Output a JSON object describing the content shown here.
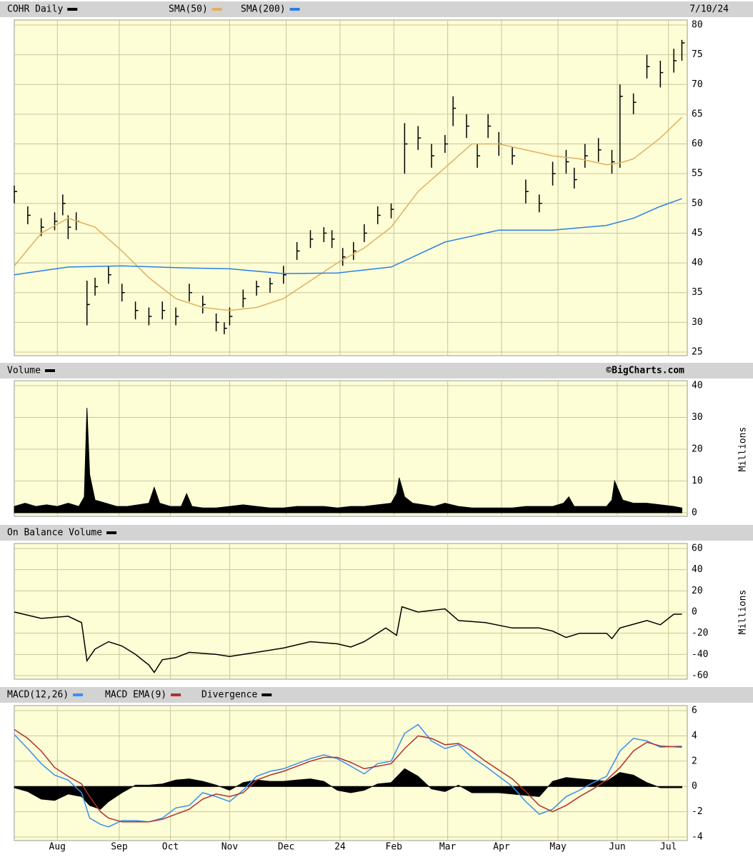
{
  "chart_data": [
    {
      "type": "ohlc",
      "date": "7/10/24",
      "xlim": [
        0,
        250
      ],
      "ylim": [
        25,
        80
      ],
      "yticks": [
        25,
        30,
        35,
        40,
        45,
        50,
        55,
        60,
        65,
        70,
        75,
        80
      ],
      "grid": true,
      "series": [
        {
          "name": "COHR Daily",
          "color": "#000000",
          "x": [
            0,
            5,
            10,
            15,
            18,
            20,
            23,
            27,
            30,
            35,
            40,
            45,
            50,
            55,
            60,
            65,
            70,
            75,
            78,
            80,
            85,
            90,
            95,
            100,
            105,
            110,
            115,
            118,
            122,
            126,
            130,
            135,
            140,
            145,
            150,
            155,
            160,
            163,
            168,
            172,
            176,
            180,
            185,
            190,
            195,
            200,
            205,
            208,
            212,
            217,
            222,
            225,
            230,
            235,
            240,
            245,
            248
          ],
          "high": [
            53,
            49.5,
            47.5,
            48.5,
            51.5,
            48,
            48.5,
            37,
            37.5,
            39.5,
            36.5,
            33.5,
            32.5,
            33.5,
            32.5,
            36.5,
            34.5,
            31.5,
            30,
            32.5,
            35.5,
            37,
            37.5,
            39.5,
            43.5,
            45.5,
            46,
            45.5,
            42.5,
            43.5,
            46.5,
            49.5,
            50,
            63.5,
            63,
            60,
            61.5,
            68,
            65,
            60,
            65,
            62,
            59.5,
            54,
            51.5,
            57,
            59,
            56,
            60,
            61,
            59,
            70,
            68.5,
            75,
            74,
            76,
            77.5
          ],
          "low": [
            50,
            46.5,
            44.5,
            45.5,
            48,
            44,
            45.5,
            29.5,
            34.5,
            36.5,
            33.5,
            30.5,
            29.5,
            30.5,
            29.5,
            33.5,
            31.5,
            28.5,
            28,
            29.5,
            32.5,
            34.5,
            35,
            36.5,
            40.5,
            42.5,
            43.5,
            42.5,
            39.5,
            40.5,
            43.5,
            46.5,
            47.5,
            55,
            59,
            56,
            58.5,
            63,
            61,
            56,
            61,
            58,
            56.5,
            50,
            48.5,
            53,
            55,
            52.5,
            56,
            57,
            55,
            56,
            65,
            71,
            69.5,
            72,
            74
          ],
          "close": [
            52,
            48,
            46,
            47,
            50,
            46,
            47,
            33,
            36,
            38,
            35,
            32,
            31,
            32,
            31,
            35,
            33,
            30,
            29,
            31,
            34,
            36,
            36.5,
            38,
            42,
            44,
            45,
            44,
            41,
            42,
            45,
            48,
            49,
            60,
            61,
            58,
            60,
            66,
            63,
            58,
            63,
            60,
            58,
            52,
            50,
            55,
            57,
            54,
            58,
            59,
            57,
            68,
            67,
            73,
            72,
            74,
            77
          ]
        },
        {
          "name": "SMA(50)",
          "color": "#e0b060",
          "x": [
            0,
            10,
            20,
            30,
            40,
            50,
            60,
            70,
            80,
            90,
            100,
            110,
            120,
            130,
            140,
            150,
            160,
            170,
            180,
            190,
            200,
            210,
            220,
            225,
            230,
            240,
            248
          ],
          "values": [
            39.5,
            45,
            47.5,
            46,
            42,
            37.5,
            34,
            32.5,
            32,
            32.5,
            34,
            37,
            40,
            42.5,
            46,
            52,
            56,
            60,
            60,
            59,
            58,
            57.5,
            56.5,
            56.8,
            57.5,
            61,
            64.5
          ]
        },
        {
          "name": "SMA(200)",
          "color": "#2a7fe8",
          "x": [
            0,
            20,
            40,
            60,
            80,
            100,
            120,
            140,
            160,
            180,
            200,
            220,
            230,
            240,
            248
          ],
          "values": [
            38,
            39.3,
            39.5,
            39.2,
            39,
            38.2,
            38.3,
            39.3,
            43.5,
            45.5,
            45.5,
            46.3,
            47.5,
            49.5,
            50.8
          ]
        }
      ]
    },
    {
      "type": "area",
      "source": "©BigCharts.com",
      "y_label": "Millions",
      "xlim": [
        0,
        250
      ],
      "ylim": [
        0,
        40
      ],
      "yticks": [
        0,
        10,
        20,
        30,
        40
      ],
      "grid": true,
      "series": [
        {
          "name": "Volume",
          "color": "#000000",
          "x": [
            0,
            4,
            8,
            12,
            16,
            20,
            24,
            26,
            27,
            28,
            30,
            34,
            38,
            42,
            46,
            50,
            52,
            54,
            58,
            62,
            64,
            66,
            70,
            75,
            80,
            85,
            90,
            95,
            100,
            105,
            110,
            115,
            120,
            125,
            130,
            135,
            140,
            142,
            143,
            145,
            148,
            152,
            156,
            160,
            165,
            170,
            175,
            180,
            185,
            190,
            195,
            200,
            204,
            206,
            208,
            212,
            216,
            220,
            222,
            223,
            226,
            230,
            235,
            240,
            245,
            248
          ],
          "values": [
            2,
            3,
            2,
            2.5,
            2,
            3,
            2,
            5,
            33,
            12,
            4,
            3,
            2,
            2,
            2.5,
            3,
            8,
            3,
            2,
            2,
            6,
            2,
            1.5,
            1.5,
            2,
            2.5,
            2,
            1.5,
            1.5,
            2,
            2,
            2,
            1.5,
            2,
            2,
            2.5,
            3,
            6,
            11,
            5,
            3,
            2.5,
            2,
            3,
            2,
            1.5,
            1.5,
            1.5,
            1.5,
            2,
            2,
            2,
            3,
            5,
            2,
            2,
            2,
            2,
            4,
            10,
            4,
            3,
            3,
            2.5,
            2,
            1.5
          ]
        }
      ]
    },
    {
      "type": "line",
      "y_label": "Millions",
      "xlim": [
        0,
        250
      ],
      "ylim": [
        -60,
        60
      ],
      "yticks": [
        -60,
        -40,
        -20,
        0,
        20,
        40,
        60
      ],
      "grid": true,
      "series": [
        {
          "name": "On Balance Volume",
          "color": "#000000",
          "x": [
            0,
            10,
            20,
            25,
            27,
            30,
            35,
            40,
            45,
            50,
            52,
            55,
            60,
            65,
            75,
            80,
            90,
            100,
            110,
            120,
            125,
            130,
            138,
            142,
            144,
            150,
            160,
            165,
            175,
            185,
            195,
            200,
            205,
            210,
            220,
            222,
            225,
            235,
            240,
            245,
            248
          ],
          "values": [
            0,
            -6,
            -4,
            -10,
            -46,
            -35,
            -28,
            -32,
            -40,
            -50,
            -57,
            -45,
            -43,
            -38,
            -40,
            -42,
            -38,
            -34,
            -28,
            -30,
            -33,
            -28,
            -15,
            -22,
            5,
            0,
            3,
            -8,
            -10,
            -15,
            -15,
            -18,
            -24,
            -20,
            -20,
            -25,
            -15,
            -8,
            -12,
            -2,
            -2
          ]
        }
      ]
    },
    {
      "type": "line",
      "xlim": [
        0,
        250
      ],
      "xticks": [
        {
          "value": 16,
          "label": "Aug"
        },
        {
          "value": 39,
          "label": "Sep"
        },
        {
          "value": 58,
          "label": "Oct"
        },
        {
          "value": 80,
          "label": "Nov"
        },
        {
          "value": 101,
          "label": "Dec"
        },
        {
          "value": 121,
          "label": "24"
        },
        {
          "value": 141,
          "label": "Feb"
        },
        {
          "value": 161,
          "label": "Mar"
        },
        {
          "value": 181,
          "label": "Apr"
        },
        {
          "value": 202,
          "label": "May"
        },
        {
          "value": 224,
          "label": "Jun"
        },
        {
          "value": 243,
          "label": "Jul"
        }
      ],
      "ylim": [
        -4,
        6
      ],
      "yticks": [
        -4,
        -2,
        0,
        2,
        4,
        6
      ],
      "grid": true,
      "series": [
        {
          "name": "MACD(12,26)",
          "color": "#3a8ff0",
          "x": [
            0,
            5,
            10,
            15,
            20,
            25,
            28,
            32,
            35,
            40,
            45,
            50,
            55,
            60,
            65,
            70,
            75,
            80,
            85,
            90,
            95,
            100,
            105,
            110,
            115,
            120,
            125,
            130,
            135,
            140,
            145,
            150,
            155,
            160,
            165,
            170,
            175,
            180,
            185,
            190,
            195,
            200,
            205,
            210,
            215,
            220,
            225,
            230,
            235,
            240,
            248
          ],
          "values": [
            4.1,
            3,
            1.8,
            0.9,
            0.5,
            -0.5,
            -2.5,
            -3,
            -3.2,
            -2.7,
            -2.7,
            -2.8,
            -2.5,
            -1.7,
            -1.5,
            -0.5,
            -0.8,
            -1.2,
            -0.3,
            0.8,
            1.2,
            1.4,
            1.8,
            2.2,
            2.5,
            2.2,
            1.6,
            1,
            1.8,
            2,
            4.2,
            4.9,
            3.6,
            3,
            3.3,
            2.3,
            1.6,
            0.8,
            0,
            -1.2,
            -2.2,
            -1.8,
            -0.8,
            -0.3,
            0.3,
            0.8,
            2.8,
            3.8,
            3.6,
            3.1,
            3.2
          ]
        },
        {
          "name": "MACD EMA(9)",
          "color": "#b03030",
          "x": [
            0,
            5,
            10,
            15,
            20,
            25,
            28,
            32,
            35,
            40,
            45,
            50,
            55,
            60,
            65,
            70,
            75,
            80,
            85,
            90,
            95,
            100,
            105,
            110,
            115,
            120,
            125,
            130,
            135,
            140,
            145,
            150,
            155,
            160,
            165,
            170,
            175,
            180,
            185,
            190,
            195,
            200,
            205,
            210,
            215,
            220,
            225,
            230,
            235,
            240,
            248
          ],
          "values": [
            4.5,
            3.8,
            2.8,
            1.5,
            0.8,
            0.2,
            -0.8,
            -2,
            -2.5,
            -2.8,
            -2.8,
            -2.8,
            -2.6,
            -2.2,
            -1.8,
            -1,
            -0.6,
            -0.8,
            -0.5,
            0.5,
            0.9,
            1.2,
            1.6,
            2,
            2.3,
            2.3,
            1.9,
            1.4,
            1.6,
            1.8,
            3,
            4,
            3.8,
            3.3,
            3.4,
            2.8,
            2,
            1.3,
            0.6,
            -0.4,
            -1.5,
            -2,
            -1.5,
            -0.8,
            -0.2,
            0.5,
            1.5,
            2.8,
            3.5,
            3.2,
            3.1
          ]
        },
        {
          "name": "Divergence",
          "color": "#000000",
          "style": "area",
          "x": [
            0,
            5,
            10,
            15,
            20,
            25,
            28,
            32,
            35,
            40,
            45,
            50,
            55,
            60,
            65,
            70,
            75,
            80,
            85,
            90,
            95,
            100,
            105,
            110,
            115,
            120,
            125,
            130,
            135,
            140,
            145,
            150,
            155,
            160,
            165,
            170,
            175,
            180,
            185,
            190,
            195,
            200,
            205,
            210,
            215,
            220,
            225,
            230,
            235,
            240,
            248
          ],
          "values": [
            -0.1,
            -0.4,
            -1,
            -1.1,
            -0.6,
            -0.8,
            -1.5,
            -1.8,
            -1.2,
            -0.5,
            0.1,
            0.1,
            0.2,
            0.5,
            0.6,
            0.4,
            0.1,
            -0.3,
            0.3,
            0.5,
            0.4,
            0.4,
            0.5,
            0.6,
            0.4,
            -0.3,
            -0.5,
            -0.3,
            0.2,
            0.3,
            1.4,
            0.8,
            -0.2,
            -0.4,
            0.1,
            -0.5,
            -0.5,
            -0.5,
            -0.6,
            -0.7,
            -0.8,
            0.4,
            0.7,
            0.6,
            0.5,
            0.4,
            1.1,
            0.9,
            0.3,
            -0.1,
            -0.1
          ]
        }
      ]
    }
  ]
}
